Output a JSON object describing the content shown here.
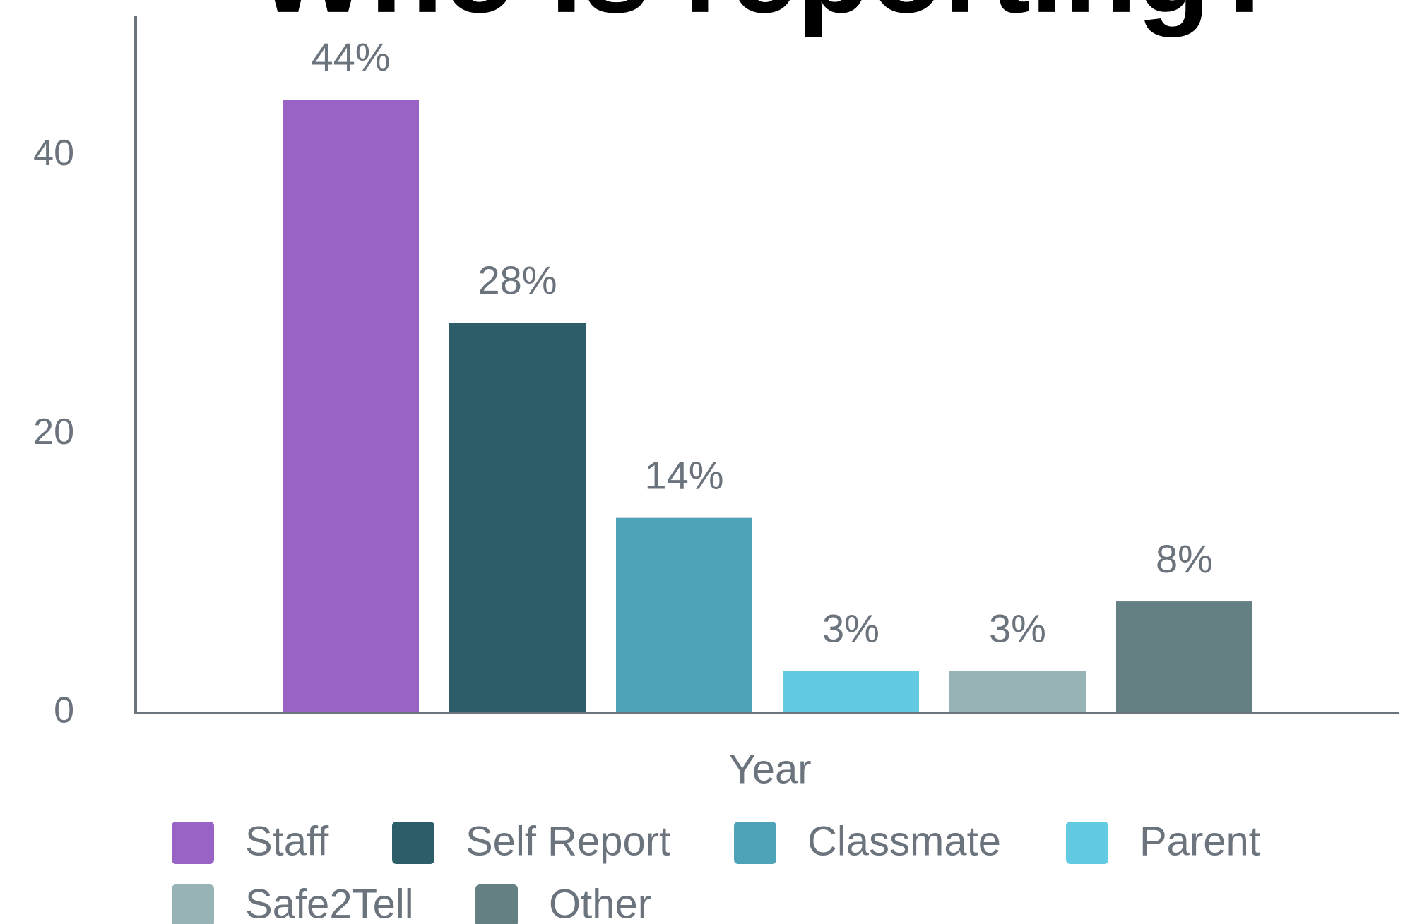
{
  "chart_data": {
    "type": "bar",
    "title": "Who is reporting?",
    "x_label": "Year",
    "ylim": [
      0,
      50
    ],
    "yticks": [
      0,
      20,
      40
    ],
    "legend": "bottom",
    "series": [
      {
        "name": "Staff",
        "color": "#9963c6",
        "values": [
          44
        ],
        "value_labels": [
          "44%"
        ]
      },
      {
        "name": "Self Report",
        "color": "#2d5d68",
        "values": [
          28
        ],
        "value_labels": [
          "28%"
        ]
      },
      {
        "name": "Classmate",
        "color": "#4fa3b8",
        "values": [
          14
        ],
        "value_labels": [
          "14%"
        ]
      },
      {
        "name": "Parent",
        "color": "#62cbe3",
        "values": [
          3
        ],
        "value_labels": [
          "3%"
        ]
      },
      {
        "name": "Safe2Tell",
        "color": "#97b3b6",
        "values": [
          3
        ],
        "value_labels": [
          "3%"
        ]
      },
      {
        "name": "Other",
        "color": "#648083",
        "values": [
          8
        ],
        "value_labels": [
          "8%"
        ]
      }
    ]
  }
}
